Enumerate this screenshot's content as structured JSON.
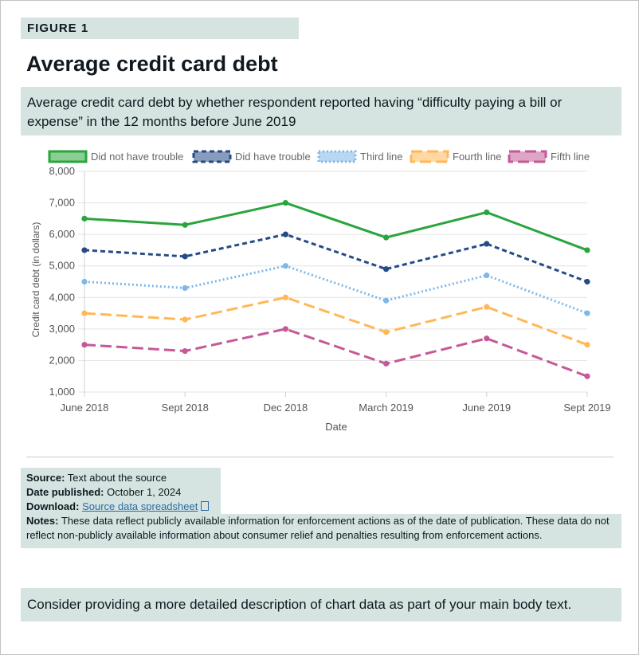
{
  "figure_tag": "FIGURE 1",
  "title": "Average credit card debt",
  "subtitle": "Average credit card debt by whether respondent reported having “difficulty paying a bill or expense” in the 12 months before June 2019",
  "meta": {
    "source_label": "Source:",
    "source_text": "Text about the source",
    "published_label": "Date published:",
    "published_text": "October 1, 2024",
    "download_label": "Download:",
    "download_link": "Source data spreadsheet",
    "notes_label": "Notes:",
    "notes_text": "These data reflect publicly available information for enforcement actions as of the date of publication. These data do not reflect non-publicly available information about consumer relief and penalties resulting from enforcement actions."
  },
  "callout": "Consider providing a more detailed description of chart data as part of your main body text.",
  "chart_data": {
    "type": "line",
    "xlabel": "Date",
    "ylabel": "Credit card debt (in dollars)",
    "categories": [
      "June 2018",
      "Sept 2018",
      "Dec 2018",
      "March 2019",
      "June 2019",
      "Sept 2019"
    ],
    "ylim": [
      1000,
      8000
    ],
    "yticks": [
      "1,000",
      "2,000",
      "3,000",
      "4,000",
      "5,000",
      "6,000",
      "7,000",
      "8,000"
    ],
    "grid": true,
    "legend_position": "top",
    "series": [
      {
        "name": "Did not have trouble",
        "values": [
          6500,
          6300,
          7000,
          5900,
          6700,
          5500
        ],
        "color": "#2aa53d",
        "style": "solid"
      },
      {
        "name": "Did have trouble",
        "values": [
          5500,
          5300,
          6000,
          4900,
          5700,
          4500
        ],
        "color": "#254b87",
        "style": "dashed"
      },
      {
        "name": "Third line",
        "values": [
          4500,
          4300,
          5000,
          3900,
          4700,
          3500
        ],
        "color": "#7eb7e8",
        "style": "dotted"
      },
      {
        "name": "Fourth line",
        "values": [
          3500,
          3300,
          4000,
          2900,
          3700,
          2500
        ],
        "color": "#ffb858",
        "style": "longdash"
      },
      {
        "name": "Fifth line",
        "values": [
          2500,
          2300,
          3000,
          1900,
          2700,
          1500
        ],
        "color": "#c55998",
        "style": "longdash"
      }
    ]
  }
}
